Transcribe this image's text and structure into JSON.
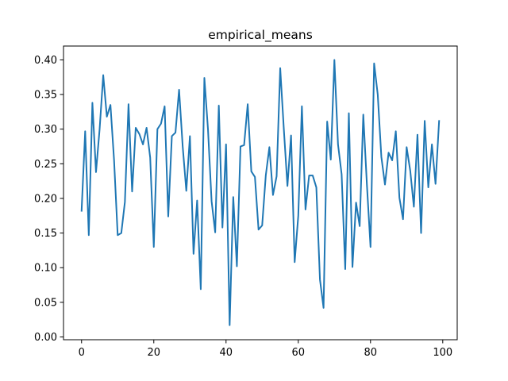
{
  "chart_data": {
    "type": "line",
    "title": "empirical_means",
    "xlabel": "",
    "ylabel": "",
    "xlim": [
      -5,
      104
    ],
    "ylim": [
      -0.004,
      0.42
    ],
    "x_ticks": [
      0,
      20,
      40,
      60,
      80,
      100
    ],
    "x_tick_labels": [
      "0",
      "20",
      "40",
      "60",
      "80",
      "100"
    ],
    "y_ticks": [
      0.0,
      0.05,
      0.1,
      0.15,
      0.2,
      0.25,
      0.3,
      0.35,
      0.4
    ],
    "y_tick_labels": [
      "0.00",
      "0.05",
      "0.10",
      "0.15",
      "0.20",
      "0.25",
      "0.30",
      "0.35",
      "0.40"
    ],
    "grid": false,
    "series": [
      {
        "name": "empirical_means",
        "color": "#1f77b4",
        "x": [
          0,
          1,
          2,
          3,
          4,
          5,
          6,
          7,
          8,
          9,
          10,
          11,
          12,
          13,
          14,
          15,
          16,
          17,
          18,
          19,
          20,
          21,
          22,
          23,
          24,
          25,
          26,
          27,
          28,
          29,
          30,
          31,
          32,
          33,
          34,
          35,
          36,
          37,
          38,
          39,
          40,
          41,
          42,
          43,
          44,
          45,
          46,
          47,
          48,
          49,
          50,
          51,
          52,
          53,
          54,
          55,
          56,
          57,
          58,
          59,
          60,
          61,
          62,
          63,
          64,
          65,
          66,
          67,
          68,
          69,
          70,
          71,
          72,
          73,
          74,
          75,
          76,
          77,
          78,
          79,
          80,
          81,
          82,
          83,
          84,
          85,
          86,
          87,
          88,
          89,
          90,
          91,
          92,
          93,
          94,
          95,
          96,
          97,
          98,
          99
        ],
        "values": [
          0.181,
          0.297,
          0.147,
          0.338,
          0.238,
          0.3,
          0.378,
          0.318,
          0.335,
          0.255,
          0.147,
          0.15,
          0.195,
          0.336,
          0.21,
          0.302,
          0.293,
          0.278,
          0.302,
          0.259,
          0.13,
          0.3,
          0.308,
          0.333,
          0.174,
          0.29,
          0.295,
          0.357,
          0.275,
          0.211,
          0.29,
          0.12,
          0.197,
          0.069,
          0.374,
          0.3,
          0.196,
          0.151,
          0.334,
          0.158,
          0.278,
          0.017,
          0.202,
          0.102,
          0.275,
          0.277,
          0.336,
          0.239,
          0.231,
          0.155,
          0.161,
          0.233,
          0.274,
          0.205,
          0.232,
          0.388,
          0.3,
          0.218,
          0.291,
          0.108,
          0.175,
          0.333,
          0.184,
          0.233,
          0.233,
          0.216,
          0.083,
          0.042,
          0.311,
          0.256,
          0.4,
          0.278,
          0.235,
          0.098,
          0.323,
          0.101,
          0.194,
          0.16,
          0.321,
          0.22,
          0.13,
          0.395,
          0.35,
          0.26,
          0.22,
          0.266,
          0.255,
          0.297,
          0.201,
          0.17,
          0.274,
          0.24,
          0.188,
          0.292,
          0.15,
          0.312,
          0.216,
          0.278,
          0.221,
          0.313
        ]
      }
    ]
  }
}
